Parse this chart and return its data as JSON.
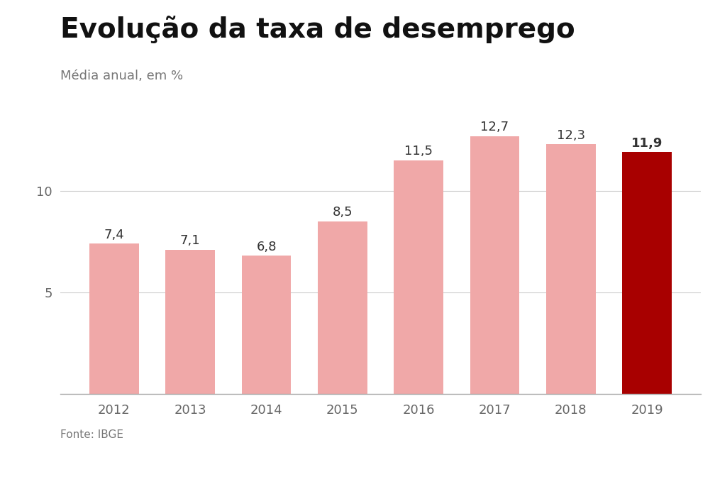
{
  "title": "Evolução da taxa de desemprego",
  "subtitle": "Média anual, em %",
  "fonte": "Fonte: IBGE",
  "years": [
    "2012",
    "2013",
    "2014",
    "2015",
    "2016",
    "2017",
    "2018",
    "2019"
  ],
  "values": [
    7.4,
    7.1,
    6.8,
    8.5,
    11.5,
    12.7,
    12.3,
    11.9
  ],
  "bar_colors": [
    "#f0a8a8",
    "#f0a8a8",
    "#f0a8a8",
    "#f0a8a8",
    "#f0a8a8",
    "#f0a8a8",
    "#f0a8a8",
    "#a80000"
  ],
  "yticks": [
    5,
    10
  ],
  "ylim": [
    0,
    14.5
  ],
  "background_color": "#ffffff",
  "title_fontsize": 28,
  "subtitle_fontsize": 13,
  "label_fontsize": 13,
  "axis_tick_fontsize": 13,
  "fonte_fontsize": 11,
  "grid_color": "#cccccc",
  "bottom_spine_color": "#aaaaaa",
  "tick_label_color": "#666666",
  "value_label_color": "#333333",
  "title_color": "#111111",
  "subtitle_color": "#777777",
  "fonte_color": "#777777"
}
